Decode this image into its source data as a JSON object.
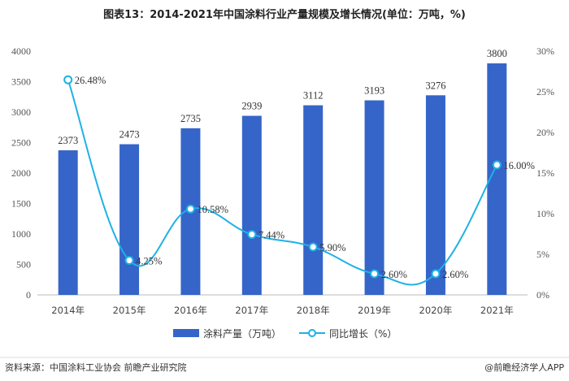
{
  "title": "图表13：2014-2021年中国涂料行业产量规模及增长情况(单位：万吨，%)",
  "footer": {
    "source": "资料来源：中国涂料工业协会 前瞻产业研究院",
    "brand": "@前瞻经济学人APP"
  },
  "colors": {
    "bar": "#3565c8",
    "line": "#1fb1e6",
    "axis": "#bbbbbb",
    "bg": "#ffffff"
  },
  "chart_data": {
    "type": "bar",
    "categories": [
      "2014年",
      "2015年",
      "2016年",
      "2017年",
      "2018年",
      "2019年",
      "2020年",
      "2021年"
    ],
    "series": [
      {
        "name": "涂料产量（万吨）",
        "type": "bar",
        "axis": "left",
        "values": [
          2373,
          2473,
          2735,
          2939,
          3112,
          3193,
          3276,
          3800
        ],
        "labels": [
          "2373",
          "2473",
          "2735",
          "2939",
          "3112",
          "3193",
          "3276",
          "3800"
        ]
      },
      {
        "name": "同比增长（%）",
        "type": "line",
        "axis": "right",
        "values": [
          26.48,
          4.25,
          10.58,
          7.44,
          5.9,
          2.6,
          2.6,
          16.0
        ],
        "labels": [
          "26.48%",
          "4.25%",
          "10.58%",
          "7.44%",
          "5.90%",
          "2.60%",
          "2.60%",
          "16.00%"
        ]
      }
    ],
    "y_left": {
      "min": 0,
      "max": 4000,
      "ticks": [
        "0",
        "500",
        "1000",
        "1500",
        "2000",
        "2500",
        "3000",
        "3500",
        "4000"
      ]
    },
    "y_right": {
      "min": 0,
      "max": 30,
      "ticks": [
        "0%",
        "5%",
        "10%",
        "15%",
        "20%",
        "25%",
        "30%"
      ]
    },
    "legend_position": "bottom-center",
    "grid": false
  }
}
